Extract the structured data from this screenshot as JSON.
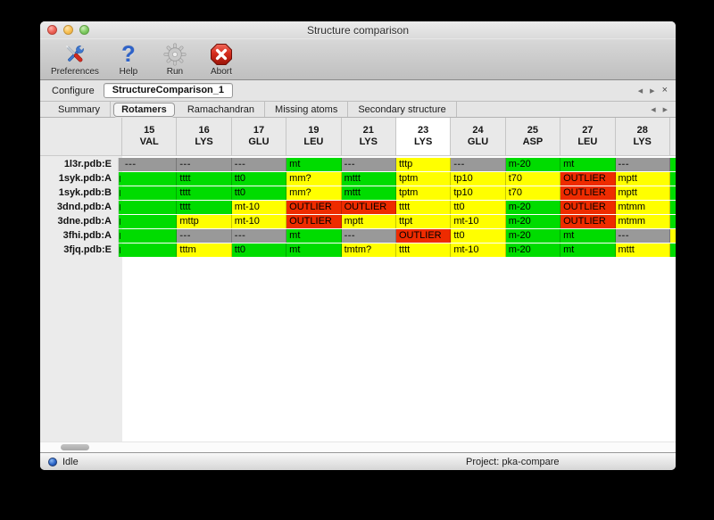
{
  "window": {
    "title": "Structure comparison"
  },
  "toolbar": {
    "items": [
      {
        "label": "Preferences",
        "icon": "tools-icon"
      },
      {
        "label": "Help",
        "icon": "question-mark-icon"
      },
      {
        "label": "Run",
        "icon": "gear-icon"
      },
      {
        "label": "Abort",
        "icon": "stop-x-icon"
      }
    ]
  },
  "configure": {
    "label": "Configure",
    "field_value": "StructureComparison_1",
    "nav": {
      "back": "◀",
      "forward": "▶",
      "close": "×"
    }
  },
  "tabs": {
    "items": [
      "Summary",
      "Rotamers",
      "Ramachandran",
      "Missing atoms",
      "Secondary structure"
    ],
    "selected": "Rotamers",
    "nav": {
      "back": "◀",
      "forward": "▶"
    }
  },
  "table": {
    "columns": [
      {
        "num": "15",
        "res": "VAL"
      },
      {
        "num": "16",
        "res": "LYS"
      },
      {
        "num": "17",
        "res": "GLU"
      },
      {
        "num": "19",
        "res": "LEU"
      },
      {
        "num": "21",
        "res": "LYS"
      },
      {
        "num": "23",
        "res": "LYS"
      },
      {
        "num": "24",
        "res": "GLU"
      },
      {
        "num": "25",
        "res": "ASP"
      },
      {
        "num": "27",
        "res": "LEU"
      },
      {
        "num": "28",
        "res": "LYS"
      }
    ],
    "highlighted_column": "23",
    "rows": [
      {
        "label": "1l3r.pdb:E",
        "left_sliver": "gray",
        "right_sliver": "green",
        "cells": [
          {
            "t": "---",
            "c": "gray"
          },
          {
            "t": "---",
            "c": "gray"
          },
          {
            "t": "---",
            "c": "gray"
          },
          {
            "t": "mt",
            "c": "green"
          },
          {
            "t": "---",
            "c": "gray"
          },
          {
            "t": "tttp",
            "c": "yellow"
          },
          {
            "t": "---",
            "c": "gray"
          },
          {
            "t": "m-20",
            "c": "green"
          },
          {
            "t": "mt",
            "c": "green"
          },
          {
            "t": "---",
            "c": "gray"
          }
        ]
      },
      {
        "label": "1syk.pdb:A",
        "left_sliver": "green",
        "right_sliver": "green",
        "cells": [
          {
            "t": "",
            "c": "green"
          },
          {
            "t": "tttt",
            "c": "green"
          },
          {
            "t": "tt0",
            "c": "green"
          },
          {
            "t": "mm?",
            "c": "yellow"
          },
          {
            "t": "mttt",
            "c": "green"
          },
          {
            "t": "tptm",
            "c": "yellow"
          },
          {
            "t": "tp10",
            "c": "yellow"
          },
          {
            "t": "t70",
            "c": "yellow"
          },
          {
            "t": "OUTLIER",
            "c": "red"
          },
          {
            "t": "mptt",
            "c": "yellow"
          }
        ]
      },
      {
        "label": "1syk.pdb:B",
        "left_sliver": "green",
        "right_sliver": "green",
        "cells": [
          {
            "t": "",
            "c": "green"
          },
          {
            "t": "tttt",
            "c": "green"
          },
          {
            "t": "tt0",
            "c": "green"
          },
          {
            "t": "mm?",
            "c": "yellow"
          },
          {
            "t": "mttt",
            "c": "green"
          },
          {
            "t": "tptm",
            "c": "yellow"
          },
          {
            "t": "tp10",
            "c": "yellow"
          },
          {
            "t": "t70",
            "c": "yellow"
          },
          {
            "t": "OUTLIER",
            "c": "red"
          },
          {
            "t": "mptt",
            "c": "yellow"
          }
        ]
      },
      {
        "label": "3dnd.pdb:A",
        "left_sliver": "green",
        "right_sliver": "green",
        "cells": [
          {
            "t": "",
            "c": "green"
          },
          {
            "t": "tttt",
            "c": "green"
          },
          {
            "t": "mt-10",
            "c": "yellow"
          },
          {
            "t": "OUTLIER",
            "c": "red"
          },
          {
            "t": "OUTLIER",
            "c": "red"
          },
          {
            "t": "tttt",
            "c": "yellow"
          },
          {
            "t": "tt0",
            "c": "yellow"
          },
          {
            "t": "m-20",
            "c": "green"
          },
          {
            "t": "OUTLIER",
            "c": "red"
          },
          {
            "t": "mtmm",
            "c": "yellow"
          }
        ]
      },
      {
        "label": "3dne.pdb:A",
        "left_sliver": "green",
        "right_sliver": "green",
        "cells": [
          {
            "t": "",
            "c": "green"
          },
          {
            "t": "mttp",
            "c": "yellow"
          },
          {
            "t": "mt-10",
            "c": "yellow"
          },
          {
            "t": "OUTLIER",
            "c": "red"
          },
          {
            "t": "mptt",
            "c": "yellow"
          },
          {
            "t": "ttpt",
            "c": "yellow"
          },
          {
            "t": "mt-10",
            "c": "yellow"
          },
          {
            "t": "m-20",
            "c": "green"
          },
          {
            "t": "OUTLIER",
            "c": "red"
          },
          {
            "t": "mtmm",
            "c": "yellow"
          }
        ]
      },
      {
        "label": "3fhi.pdb:A",
        "left_sliver": "green",
        "right_sliver": "yellow",
        "cells": [
          {
            "t": "",
            "c": "green"
          },
          {
            "t": "---",
            "c": "gray"
          },
          {
            "t": "---",
            "c": "gray"
          },
          {
            "t": "mt",
            "c": "green"
          },
          {
            "t": "---",
            "c": "gray"
          },
          {
            "t": "OUTLIER",
            "c": "red"
          },
          {
            "t": "tt0",
            "c": "yellow"
          },
          {
            "t": "m-20",
            "c": "green"
          },
          {
            "t": "mt",
            "c": "green"
          },
          {
            "t": "---",
            "c": "gray"
          }
        ]
      },
      {
        "label": "3fjq.pdb:E",
        "left_sliver": "green",
        "right_sliver": "green",
        "cells": [
          {
            "t": "",
            "c": "green"
          },
          {
            "t": "tttm",
            "c": "yellow"
          },
          {
            "t": "tt0",
            "c": "green"
          },
          {
            "t": "mt",
            "c": "green"
          },
          {
            "t": "tmtm?",
            "c": "yellow"
          },
          {
            "t": "tttt",
            "c": "yellow"
          },
          {
            "t": "mt-10",
            "c": "yellow"
          },
          {
            "t": "m-20",
            "c": "green"
          },
          {
            "t": "mt",
            "c": "green"
          },
          {
            "t": "mttt",
            "c": "yellow"
          }
        ]
      }
    ]
  },
  "statusbar": {
    "status": "Idle",
    "project": "Project: pka-compare"
  },
  "colors": {
    "green": "#00dc00",
    "yellow": "#ffff00",
    "red": "#ee2b00",
    "gray": "#999999",
    "header_highlight": "#ffffff"
  }
}
